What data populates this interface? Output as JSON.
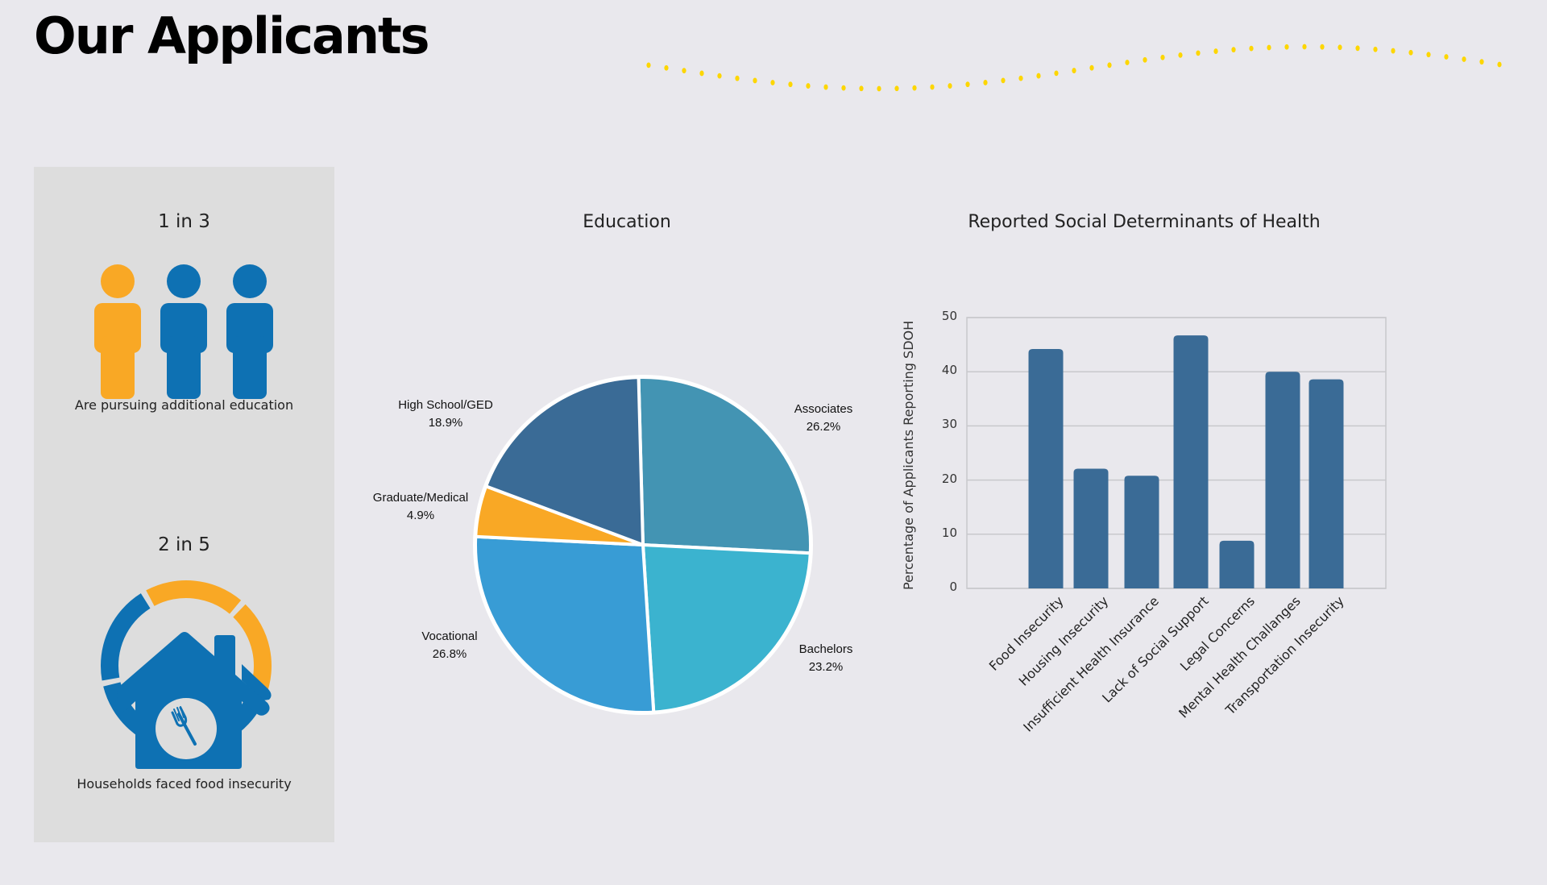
{
  "page": {
    "title": "Our Applicants"
  },
  "colors": {
    "background": "#e9e8ed",
    "panel": "#dddddd",
    "accent_orange": "#f9a825",
    "accent_blue": "#0e71b3",
    "dots": "#fdd600",
    "bar": "#3a6b96"
  },
  "stats": [
    {
      "headline": "1 in 3",
      "caption": "Are pursuing additional education",
      "icon": "people-icon",
      "highlighted": 1,
      "total": 3
    },
    {
      "headline": "2 in 5",
      "caption": "Households faced food insecurity",
      "icon": "house-fork-ring-icon",
      "highlighted": 2,
      "total": 5
    }
  ],
  "chart_data": [
    {
      "type": "pie",
      "title": "Education",
      "slices": [
        {
          "label": "Associates",
          "value": 26.2,
          "display": "26.2%",
          "color": "#4394b3"
        },
        {
          "label": "Bachelors",
          "value": 23.2,
          "display": "23.2%",
          "color": "#3bb3cf"
        },
        {
          "label": "Vocational",
          "value": 26.8,
          "display": "26.8%",
          "color": "#389cd5"
        },
        {
          "label": "Graduate/Medical",
          "value": 4.9,
          "display": "4.9%",
          "color": "#f9a825"
        },
        {
          "label": "High School/GED",
          "value": 18.9,
          "display": "18.9%",
          "color": "#3a6b96"
        }
      ]
    },
    {
      "type": "bar",
      "title": "Reported Social Determinants of Health",
      "xlabel": "",
      "ylabel": "Percentage of Applicants Reporting SDOH",
      "ylim": [
        0,
        50
      ],
      "yticks": [
        0,
        10,
        20,
        30,
        40,
        50
      ],
      "grid": true,
      "categories": [
        "Food Insecurity",
        "Housing Insecurity",
        "Insufficient Health Insurance",
        "Lack of Social Support",
        "Legal Concerns",
        "Mental Health Challanges",
        "Transportation Insecurity"
      ],
      "values": [
        44.2,
        22.1,
        20.8,
        46.7,
        8.8,
        40.0,
        38.6
      ]
    }
  ]
}
